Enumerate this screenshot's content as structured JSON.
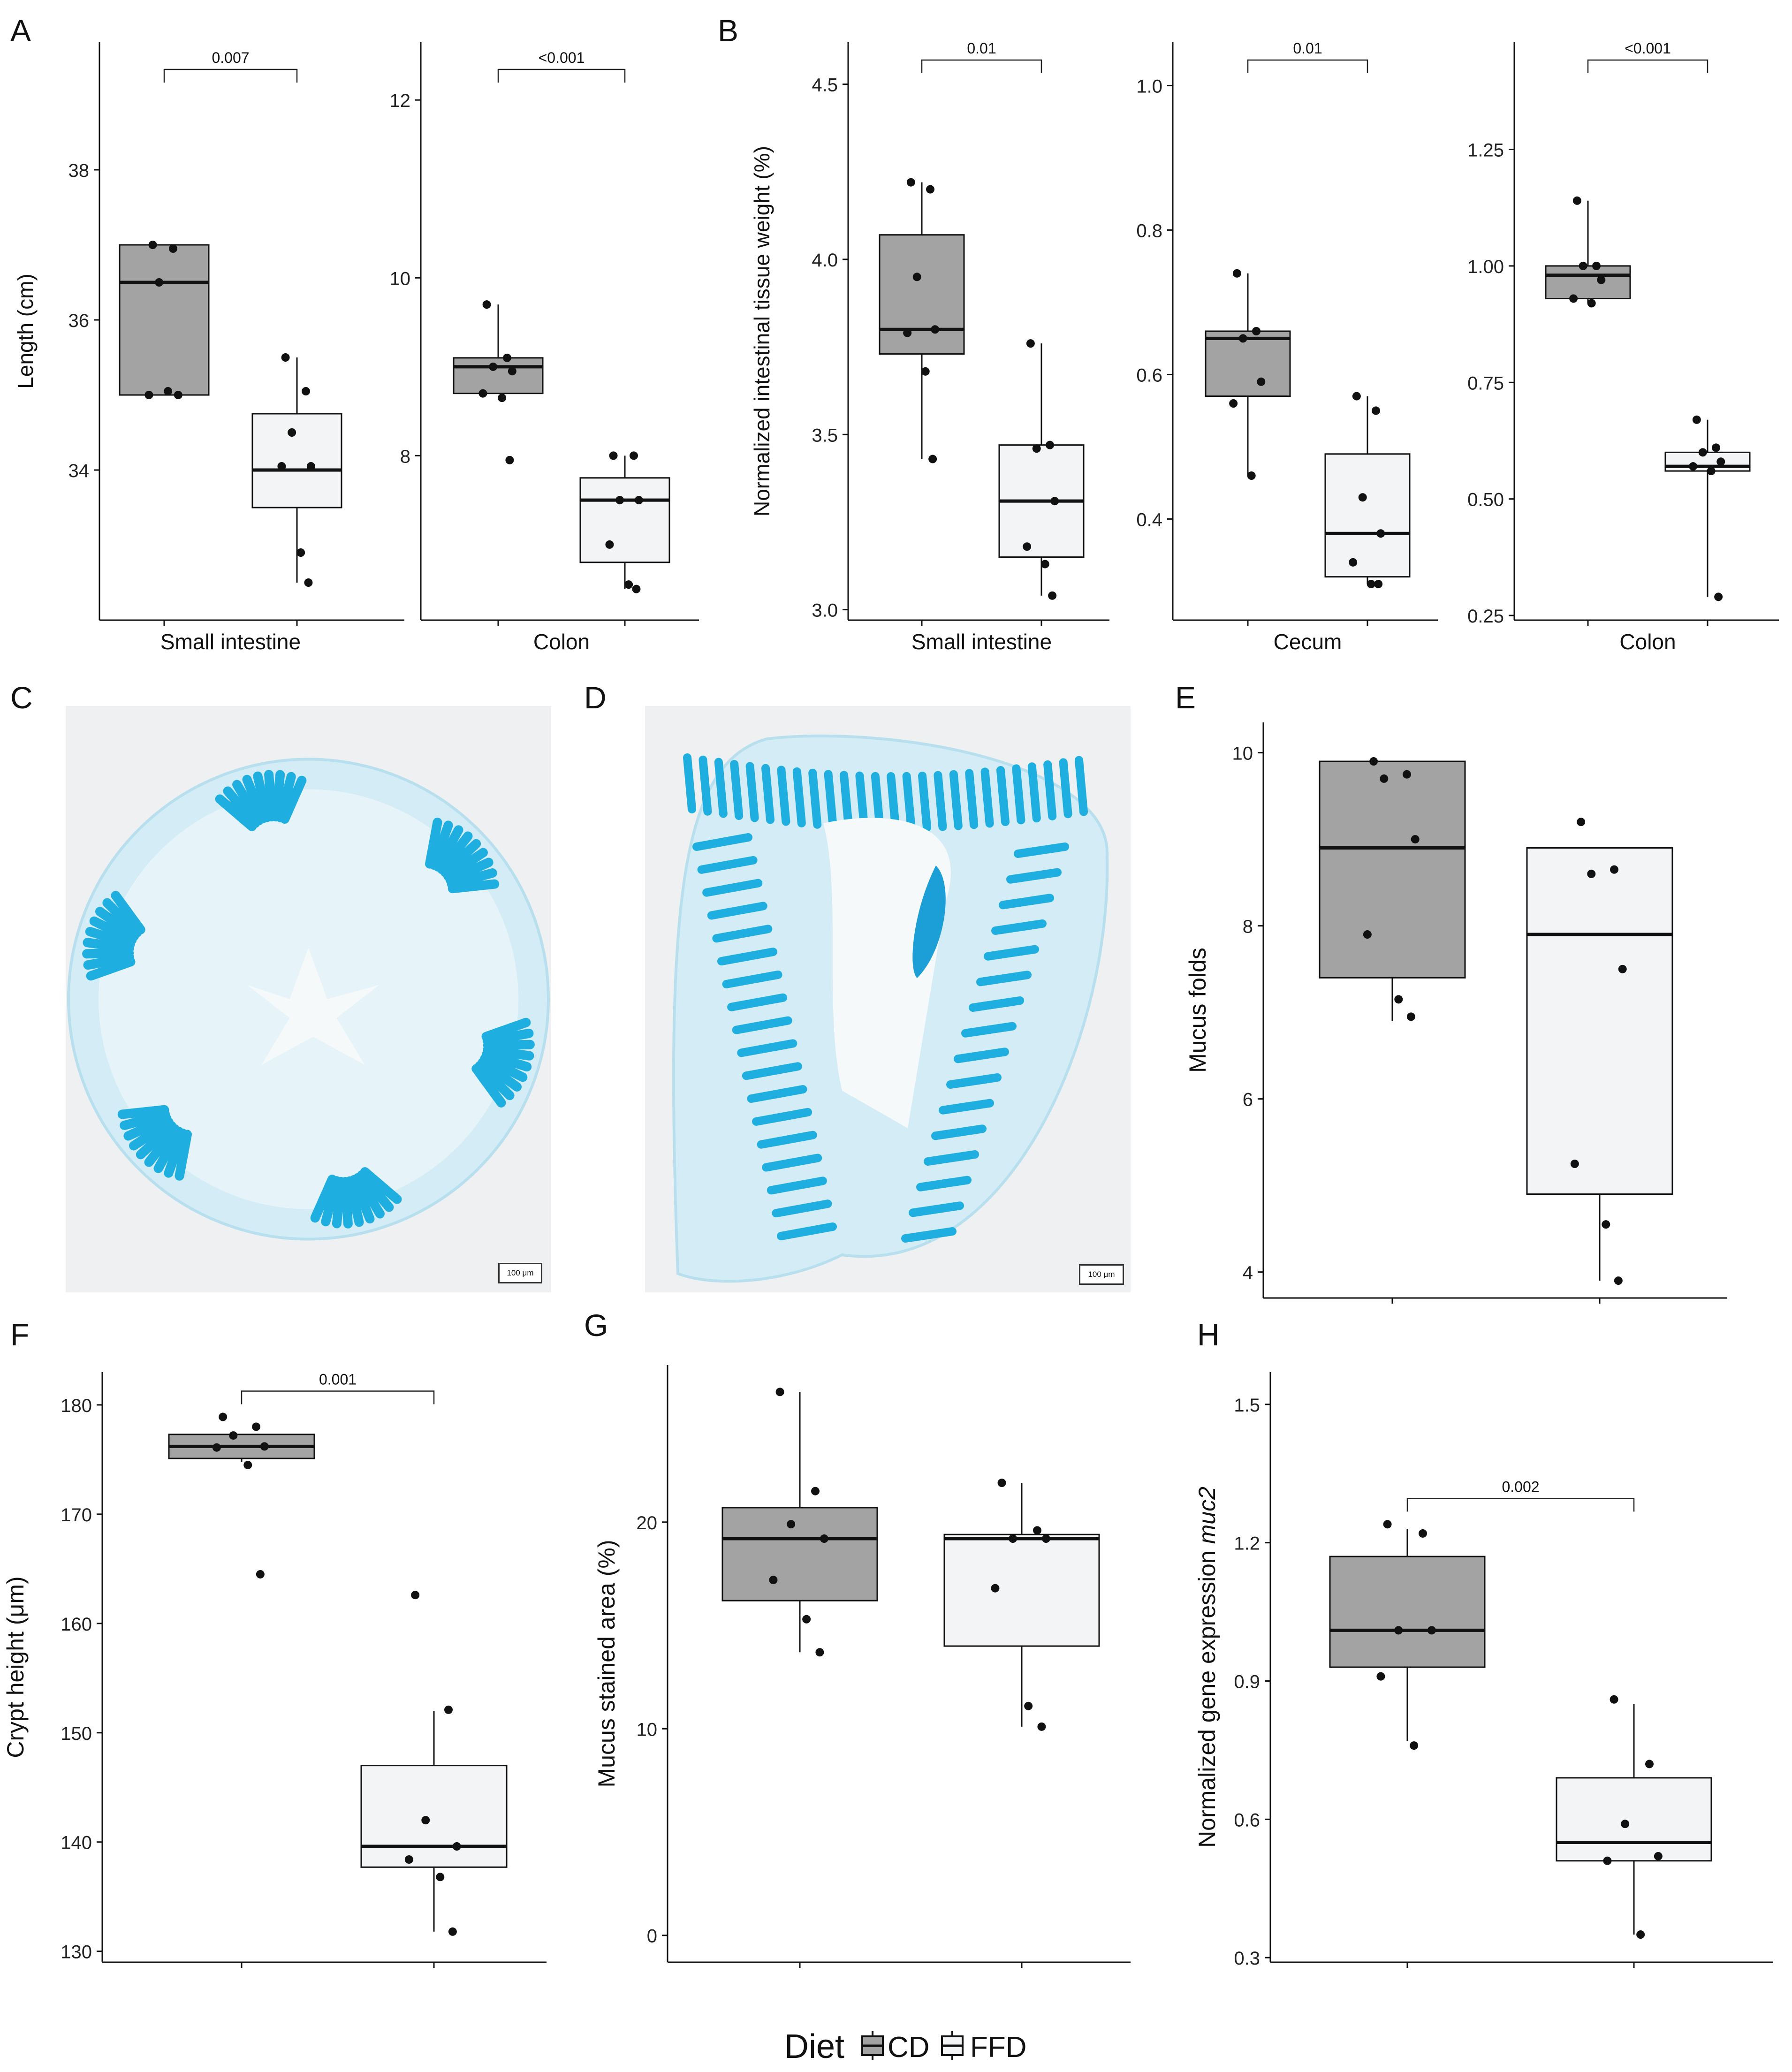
{
  "figure": {
    "legend": {
      "title": "Diet",
      "items": [
        "CD",
        "FFD"
      ]
    },
    "micrographs": [
      {
        "panel": "C",
        "scale_label": "100 μm"
      },
      {
        "panel": "D",
        "scale_label": "100 μm"
      }
    ]
  },
  "colors": {
    "CD": "#a3a3a3",
    "FFD": "#f3f4f6",
    "axis": "#111111",
    "stain": "#1faee0",
    "tissue": "#c9e8f3"
  },
  "chart_data": [
    {
      "type": "box",
      "panel": "A",
      "categories": [
        "Small intestine"
      ],
      "xlabel": "Small intestine",
      "ylabel": "Length (cm)",
      "ylim": [
        32.0,
        39.7
      ],
      "yticks": [
        34,
        36,
        38
      ],
      "pvalue": "0.007",
      "series": [
        {
          "name": "CD",
          "box": {
            "lower_whisker": 35.0,
            "q1": 35.0,
            "median": 36.5,
            "q3": 37.0,
            "upper_whisker": 37.0
          },
          "points": [
            37.0,
            36.95,
            36.5,
            35.0,
            35.0,
            35.05
          ]
        },
        {
          "name": "FFD",
          "box": {
            "lower_whisker": 32.5,
            "q1": 33.5,
            "median": 34.0,
            "q3": 34.75,
            "upper_whisker": 35.5
          },
          "points": [
            35.5,
            35.05,
            34.5,
            34.05,
            34.05,
            32.9,
            32.5
          ]
        }
      ]
    },
    {
      "type": "box",
      "panel": "A",
      "categories": [
        "Colon"
      ],
      "xlabel": "Colon",
      "ylabel": "",
      "ylim": [
        6.15,
        12.65
      ],
      "yticks": [
        8,
        10,
        12
      ],
      "pvalue": "<0.001",
      "series": [
        {
          "name": "CD",
          "box": {
            "lower_whisker": 8.7,
            "q1": 8.7,
            "median": 9.0,
            "q3": 9.1,
            "upper_whisker": 9.7
          },
          "points": [
            9.7,
            9.1,
            9.0,
            8.95,
            8.7,
            8.65,
            7.95
          ]
        },
        {
          "name": "FFD",
          "box": {
            "lower_whisker": 6.5,
            "q1": 6.8,
            "median": 7.5,
            "q3": 7.75,
            "upper_whisker": 8.0
          },
          "points": [
            8.0,
            8.0,
            7.5,
            7.5,
            7.0,
            6.55,
            6.5
          ]
        }
      ]
    },
    {
      "type": "box",
      "panel": "B",
      "categories": [
        "Small intestine"
      ],
      "xlabel": "Small intestine",
      "ylabel": "Normalized intestinal tissue weight (%)",
      "ylim": [
        2.97,
        4.62
      ],
      "yticks": [
        3.0,
        3.5,
        4.0,
        4.5
      ],
      "pvalue": "0.01",
      "series": [
        {
          "name": "CD",
          "box": {
            "lower_whisker": 3.43,
            "q1": 3.73,
            "median": 3.8,
            "q3": 4.07,
            "upper_whisker": 4.22
          },
          "points": [
            4.22,
            4.2,
            3.95,
            3.8,
            3.79,
            3.68,
            3.43
          ]
        },
        {
          "name": "FFD",
          "box": {
            "lower_whisker": 3.04,
            "q1": 3.15,
            "median": 3.31,
            "q3": 3.47,
            "upper_whisker": 3.76
          },
          "points": [
            3.76,
            3.47,
            3.46,
            3.31,
            3.18,
            3.13,
            3.04
          ]
        }
      ]
    },
    {
      "type": "box",
      "panel": "B",
      "categories": [
        "Cecum"
      ],
      "xlabel": "Cecum",
      "ylabel": "",
      "ylim": [
        0.26,
        1.06
      ],
      "yticks": [
        0.4,
        0.6,
        0.8,
        1.0
      ],
      "pvalue": "0.01",
      "series": [
        {
          "name": "CD",
          "box": {
            "lower_whisker": 0.46,
            "q1": 0.57,
            "median": 0.65,
            "q3": 0.66,
            "upper_whisker": 0.74
          },
          "points": [
            0.74,
            0.66,
            0.65,
            0.59,
            0.56,
            0.46
          ]
        },
        {
          "name": "FFD",
          "box": {
            "lower_whisker": 0.31,
            "q1": 0.32,
            "median": 0.38,
            "q3": 0.49,
            "upper_whisker": 0.57
          },
          "points": [
            0.57,
            0.55,
            0.43,
            0.38,
            0.34,
            0.31,
            0.31
          ]
        }
      ]
    },
    {
      "type": "box",
      "panel": "B",
      "categories": [
        "Colon"
      ],
      "xlabel": "Colon",
      "ylabel": "",
      "ylim": [
        0.24,
        1.48
      ],
      "yticks": [
        0.25,
        0.5,
        0.75,
        1.0,
        1.25
      ],
      "pvalue": "<0.001",
      "series": [
        {
          "name": "CD",
          "box": {
            "lower_whisker": 0.92,
            "q1": 0.93,
            "median": 0.98,
            "q3": 1.0,
            "upper_whisker": 1.14
          },
          "points": [
            1.14,
            1.0,
            1.0,
            0.97,
            0.93,
            0.92
          ]
        },
        {
          "name": "FFD",
          "box": {
            "lower_whisker": 0.29,
            "q1": 0.56,
            "median": 0.57,
            "q3": 0.6,
            "upper_whisker": 0.67
          },
          "points": [
            0.67,
            0.61,
            0.6,
            0.58,
            0.57,
            0.56,
            0.29
          ]
        }
      ]
    },
    {
      "type": "box",
      "panel": "E",
      "categories": [
        "CD",
        "FFD"
      ],
      "xlabel": "",
      "ylabel": "Mucus folds",
      "ylim": [
        3.7,
        10.35
      ],
      "yticks": [
        4,
        6,
        8,
        10
      ],
      "pvalue": "",
      "series": [
        {
          "name": "CD",
          "box": {
            "lower_whisker": 6.9,
            "q1": 7.4,
            "median": 8.9,
            "q3": 9.9,
            "upper_whisker": 9.9
          },
          "points": [
            9.9,
            9.75,
            9.7,
            9.0,
            7.9,
            7.15,
            6.95
          ]
        },
        {
          "name": "FFD",
          "box": {
            "lower_whisker": 3.9,
            "q1": 4.9,
            "median": 7.9,
            "q3": 8.9,
            "upper_whisker": 8.9
          },
          "points": [
            9.2,
            8.65,
            8.6,
            7.5,
            5.25,
            4.55,
            3.9
          ]
        }
      ]
    },
    {
      "type": "box",
      "panel": "F",
      "categories": [
        "CD",
        "FFD"
      ],
      "xlabel": "",
      "ylabel": "Crypt height (μm)",
      "ylim": [
        129.0,
        183.0
      ],
      "yticks": [
        130,
        140,
        150,
        160,
        170,
        180
      ],
      "pvalue": "0.001",
      "series": [
        {
          "name": "CD",
          "box": {
            "lower_whisker": 174.8,
            "q1": 175.1,
            "median": 176.2,
            "q3": 177.3,
            "upper_whisker": 177.3
          },
          "points": [
            178.9,
            178.0,
            177.2,
            176.2,
            176.1,
            174.5,
            164.5
          ]
        },
        {
          "name": "FFD",
          "box": {
            "lower_whisker": 131.8,
            "q1": 137.7,
            "median": 139.6,
            "q3": 147.0,
            "upper_whisker": 152.0
          },
          "points": [
            162.6,
            152.1,
            142.0,
            139.6,
            138.4,
            136.8,
            131.8
          ]
        }
      ]
    },
    {
      "type": "box",
      "panel": "G",
      "categories": [
        "CD",
        "FFD"
      ],
      "xlabel": "",
      "ylabel": "Mucus stained area (%)",
      "ylim": [
        -1.3,
        27.6
      ],
      "yticks": [
        0,
        10,
        20
      ],
      "pvalue": "",
      "series": [
        {
          "name": "CD",
          "box": {
            "lower_whisker": 13.7,
            "q1": 16.2,
            "median": 19.2,
            "q3": 20.7,
            "upper_whisker": 26.3
          },
          "points": [
            26.3,
            21.5,
            19.9,
            19.2,
            17.2,
            15.3,
            13.7
          ]
        },
        {
          "name": "FFD",
          "box": {
            "lower_whisker": 10.1,
            "q1": 14.0,
            "median": 19.2,
            "q3": 19.4,
            "upper_whisker": 21.9
          },
          "points": [
            21.9,
            19.6,
            19.2,
            19.2,
            16.8,
            11.1,
            10.1
          ]
        }
      ]
    },
    {
      "type": "box",
      "panel": "H",
      "categories": [
        "CD",
        "FFD"
      ],
      "xlabel": "",
      "ylabel": "Normalized gene expression muc2",
      "ylim": [
        0.29,
        1.57
      ],
      "yticks": [
        0.3,
        0.6,
        0.9,
        1.2,
        1.5
      ],
      "pvalue": "0.002",
      "series": [
        {
          "name": "CD",
          "box": {
            "lower_whisker": 0.77,
            "q1": 0.93,
            "median": 1.01,
            "q3": 1.17,
            "upper_whisker": 1.23
          },
          "points": [
            1.24,
            1.22,
            1.01,
            1.01,
            0.91,
            0.76
          ]
        },
        {
          "name": "FFD",
          "box": {
            "lower_whisker": 0.35,
            "q1": 0.51,
            "median": 0.55,
            "q3": 0.69,
            "upper_whisker": 0.85
          },
          "points": [
            0.86,
            0.72,
            0.59,
            0.52,
            0.51,
            0.35
          ]
        }
      ]
    }
  ]
}
